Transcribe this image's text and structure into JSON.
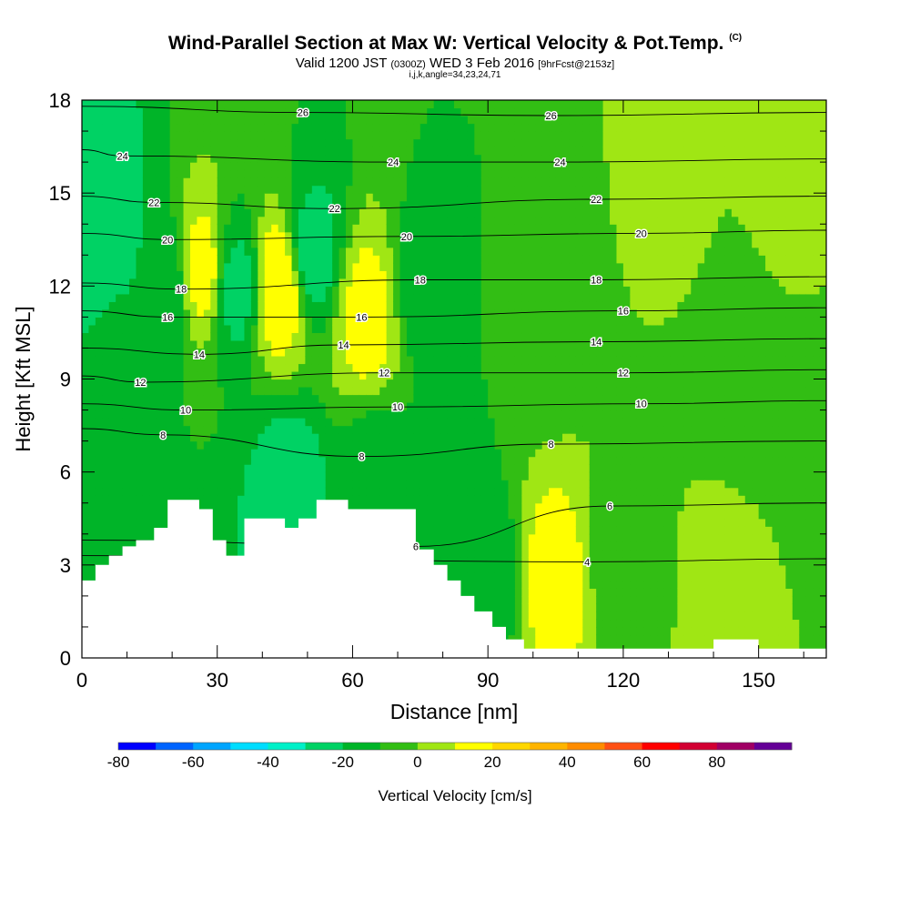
{
  "header": {
    "title": "Wind-Parallel Section at Max W: Vertical Velocity & Pot.Temp.",
    "title_tag": "(C)",
    "valid_prefix": "Valid 1200 JST",
    "valid_utc": "(0300Z)",
    "valid_date": "WED 3 Feb 2016",
    "forecast": "[9hrFcst@2153z]",
    "indices": "i,j,k,angle=34,23,24,71"
  },
  "chart_data": {
    "type": "heatmap",
    "xlabel": "Distance [nm]",
    "ylabel": "Height [Kft MSL]",
    "xlim": [
      0,
      165
    ],
    "ylim": [
      0,
      18
    ],
    "x_ticks": [
      0,
      30,
      60,
      90,
      120,
      150
    ],
    "y_ticks": [
      0,
      3,
      6,
      9,
      12,
      15,
      18
    ],
    "colorbar": {
      "label": "Vertical Velocity [cm/s]",
      "ticks": [
        -80,
        -60,
        -40,
        -20,
        0,
        20,
        40,
        60,
        80
      ],
      "levels": [
        -80,
        -70,
        -60,
        -50,
        -40,
        -30,
        -20,
        -10,
        0,
        10,
        20,
        30,
        40,
        50,
        60,
        70,
        80,
        90
      ],
      "colors": [
        "#0000ff",
        "#0064ff",
        "#00a5ff",
        "#00ddff",
        "#00f0c8",
        "#00d264",
        "#00b428",
        "#32be14",
        "#a0e614",
        "#ffff00",
        "#ffd700",
        "#ffb400",
        "#ff8c00",
        "#ff5014",
        "#ff0000",
        "#d20032",
        "#a00064",
        "#640096"
      ]
    },
    "terrain": [
      [
        0,
        2.5
      ],
      [
        3,
        3.0
      ],
      [
        6,
        3.3
      ],
      [
        9,
        3.6
      ],
      [
        12,
        3.8
      ],
      [
        16,
        4.2
      ],
      [
        19,
        5.1
      ],
      [
        26,
        4.8
      ],
      [
        29,
        3.8
      ],
      [
        32,
        3.3
      ],
      [
        36,
        4.5
      ],
      [
        45,
        4.2
      ],
      [
        48,
        4.5
      ],
      [
        52,
        5.1
      ],
      [
        59,
        4.8
      ],
      [
        70,
        4.8
      ],
      [
        74,
        3.5
      ],
      [
        78,
        3.0
      ],
      [
        81,
        2.5
      ],
      [
        84,
        2.0
      ],
      [
        87,
        1.5
      ],
      [
        91,
        1.0
      ],
      [
        94,
        0.6
      ],
      [
        98,
        0.3
      ],
      [
        140,
        0.6
      ],
      [
        150,
        0.3
      ],
      [
        165,
        0.3
      ]
    ],
    "velocity_field": [
      {
        "x": 3,
        "y": 14,
        "w": -30
      },
      {
        "x": 8,
        "y": 9,
        "w": -15
      },
      {
        "x": 18,
        "y": 12,
        "w": -20
      },
      {
        "x": 27,
        "y": 12.5,
        "w": 15
      },
      {
        "x": 34,
        "y": 12,
        "w": -25
      },
      {
        "x": 44,
        "y": 12,
        "w": 20
      },
      {
        "x": 51,
        "y": 13,
        "w": -25
      },
      {
        "x": 63,
        "y": 11,
        "w": 15
      },
      {
        "x": 76,
        "y": 12,
        "w": -15
      },
      {
        "x": 46,
        "y": 5.5,
        "w": -25
      },
      {
        "x": 65,
        "y": 6,
        "w": -15
      },
      {
        "x": 80,
        "y": 3.5,
        "w": -20
      },
      {
        "x": 91,
        "y": 2.5,
        "w": -15
      },
      {
        "x": 104,
        "y": 2.5,
        "w": 15
      },
      {
        "x": 103,
        "y": 11,
        "w": -5
      },
      {
        "x": 120,
        "y": 3,
        "w": -5
      },
      {
        "x": 143,
        "y": 2.5,
        "w": 5
      },
      {
        "x": 147,
        "y": 9,
        "w": -10
      },
      {
        "x": 162,
        "y": 8.5,
        "w": -10
      },
      {
        "x": 130,
        "y": 15,
        "w": 2
      },
      {
        "x": 160,
        "y": 15,
        "w": 10
      }
    ],
    "theta_contours": [
      {
        "theta": 4,
        "x": 112,
        "y": 3.1
      },
      {
        "theta": 6,
        "x": 74,
        "y": 3.6
      },
      {
        "theta": 6,
        "x": 117,
        "y": 4.9
      },
      {
        "theta": 8,
        "x": 18,
        "y": 7.2
      },
      {
        "theta": 8,
        "x": 62,
        "y": 6.5
      },
      {
        "theta": 8,
        "x": 104,
        "y": 6.9
      },
      {
        "theta": 10,
        "x": 23,
        "y": 8.0
      },
      {
        "theta": 10,
        "x": 70,
        "y": 8.1
      },
      {
        "theta": 10,
        "x": 124,
        "y": 8.2
      },
      {
        "theta": 12,
        "x": 13,
        "y": 8.9
      },
      {
        "theta": 12,
        "x": 67,
        "y": 9.2
      },
      {
        "theta": 12,
        "x": 120,
        "y": 9.2
      },
      {
        "theta": 14,
        "x": 26,
        "y": 9.8
      },
      {
        "theta": 14,
        "x": 58,
        "y": 10.1
      },
      {
        "theta": 14,
        "x": 114,
        "y": 10.2
      },
      {
        "theta": 16,
        "x": 19,
        "y": 11.0
      },
      {
        "theta": 16,
        "x": 62,
        "y": 11.0
      },
      {
        "theta": 16,
        "x": 120,
        "y": 11.2
      },
      {
        "theta": 18,
        "x": 22,
        "y": 11.9
      },
      {
        "theta": 18,
        "x": 75,
        "y": 12.2
      },
      {
        "theta": 18,
        "x": 114,
        "y": 12.2
      },
      {
        "theta": 20,
        "x": 19,
        "y": 13.5
      },
      {
        "theta": 20,
        "x": 72,
        "y": 13.6
      },
      {
        "theta": 20,
        "x": 124,
        "y": 13.7
      },
      {
        "theta": 22,
        "x": 16,
        "y": 14.7
      },
      {
        "theta": 22,
        "x": 56,
        "y": 14.5
      },
      {
        "theta": 22,
        "x": 114,
        "y": 14.8
      },
      {
        "theta": 24,
        "x": 9,
        "y": 16.2
      },
      {
        "theta": 24,
        "x": 69,
        "y": 16.0
      },
      {
        "theta": 24,
        "x": 106,
        "y": 16.0
      },
      {
        "theta": 26,
        "x": 49,
        "y": 17.6
      },
      {
        "theta": 26,
        "x": 104,
        "y": 17.5
      }
    ]
  }
}
